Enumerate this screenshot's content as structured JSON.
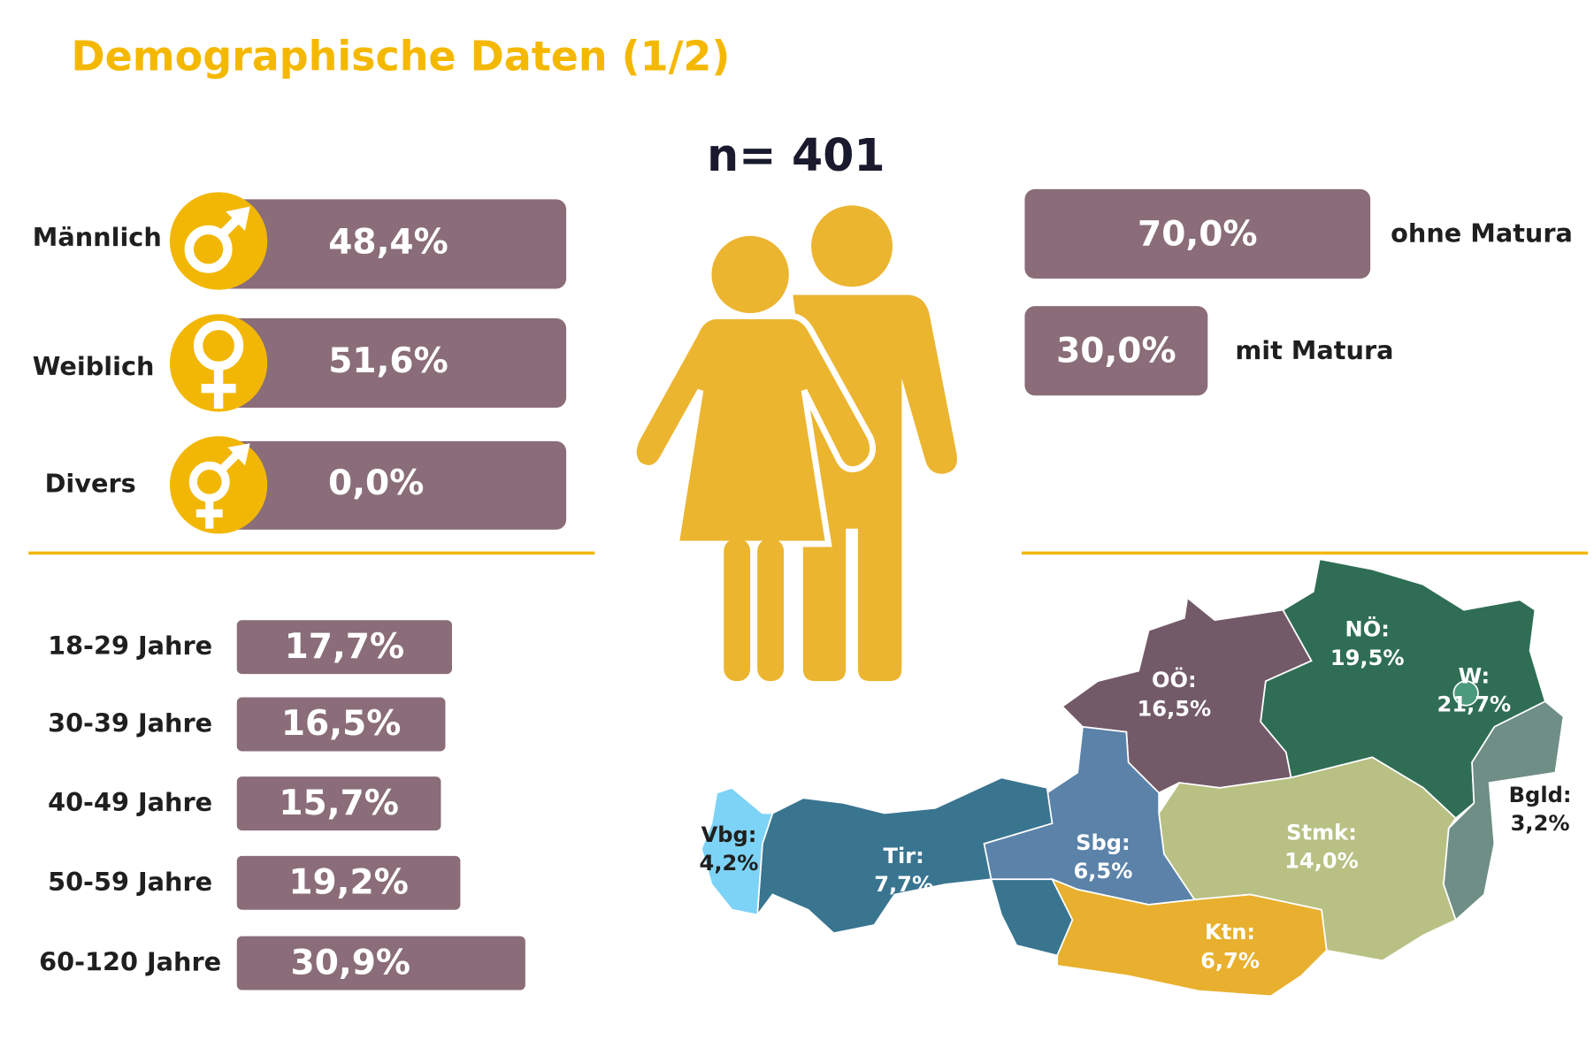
{
  "title": "Demographische Daten (1/2)",
  "sample": "n= 401",
  "gender": [
    {
      "label": "Männlich",
      "value_label": "48,4%"
    },
    {
      "label": "Weiblich",
      "value_label": "51,6%"
    },
    {
      "label": "Divers",
      "value_label": "0,0%"
    }
  ],
  "education": [
    {
      "label": "ohne Matura",
      "value": 70.0,
      "value_label": "70,0%"
    },
    {
      "label": "mit Matura",
      "value": 30.0,
      "value_label": "30,0%"
    }
  ],
  "age": [
    {
      "label": "18-29 Jahre",
      "value": 17.7,
      "value_label": "17,7%"
    },
    {
      "label": "30-39 Jahre",
      "value": 16.5,
      "value_label": "16,5%"
    },
    {
      "label": "40-49 Jahre",
      "value": 15.7,
      "value_label": "15,7%"
    },
    {
      "label": "50-59 Jahre",
      "value": 19.2,
      "value_label": "19,2%"
    },
    {
      "label": "60-120 Jahre",
      "value": 30.9,
      "value_label": "30,9%"
    }
  ],
  "regions": [
    {
      "label": "NÖ:",
      "value_label": "19,5%"
    },
    {
      "label": "OÖ:",
      "value_label": "16,5%"
    },
    {
      "label": "W:",
      "value_label": "21,7%"
    },
    {
      "label": "Bgld:",
      "value_label": "3,2%"
    },
    {
      "label": "Stmk:",
      "value_label": "14,0%"
    },
    {
      "label": "Sbg:",
      "value_label": "6,5%"
    },
    {
      "label": "Tir:",
      "value_label": "7,7%"
    },
    {
      "label": "Vbg:",
      "value_label": "4,2%"
    },
    {
      "label": "Ktn:",
      "value_label": "6,7%"
    }
  ]
}
